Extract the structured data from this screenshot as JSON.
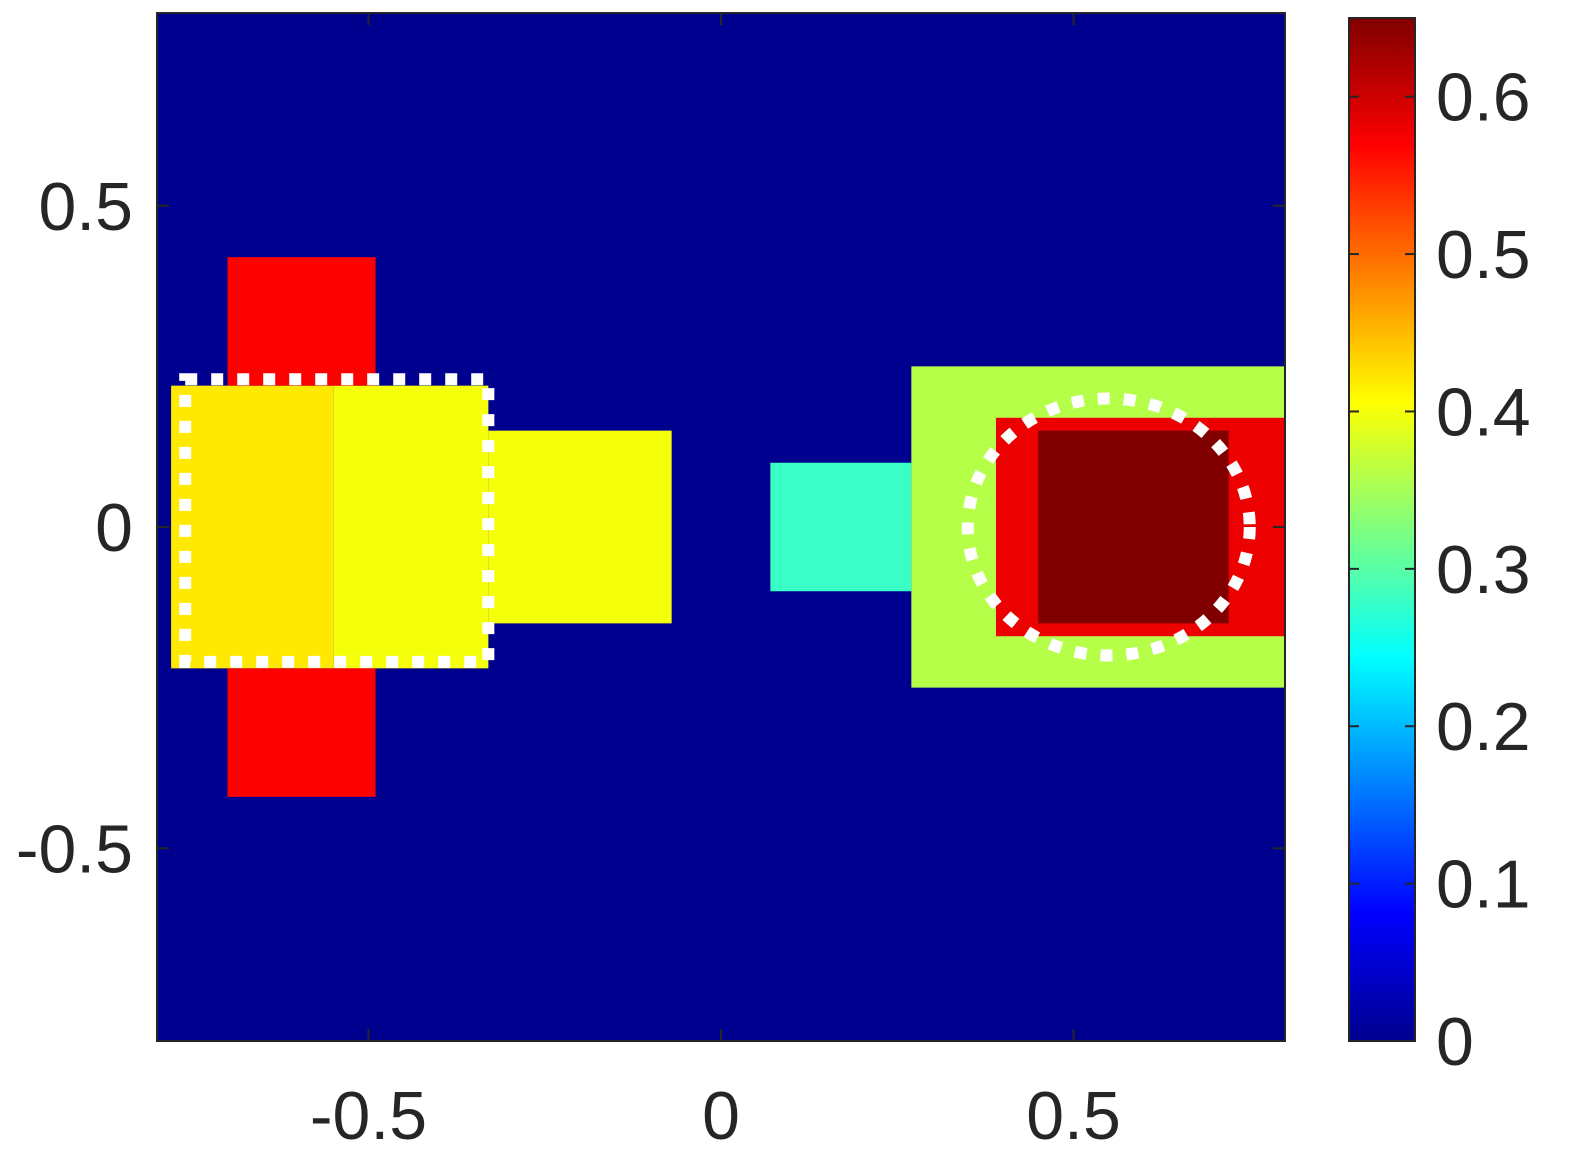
{
  "chart_data": {
    "type": "heatmap",
    "title": "",
    "xlabel": "",
    "ylabel": "",
    "xlim": [
      -0.8,
      0.8
    ],
    "ylim": [
      -0.8,
      0.8
    ],
    "x_ticks": [
      {
        "value": -0.5,
        "label": "-0.5"
      },
      {
        "value": 0,
        "label": "0"
      },
      {
        "value": 0.5,
        "label": "0.5"
      }
    ],
    "y_ticks": [
      {
        "value": 0.5,
        "label": "0.5"
      },
      {
        "value": 0,
        "label": "0"
      },
      {
        "value": -0.5,
        "label": "-0.5"
      }
    ],
    "colormap": "jet",
    "colorbar": {
      "range": [
        0,
        0.65
      ],
      "ticks": [
        {
          "value": 0,
          "label": "0"
        },
        {
          "value": 0.1,
          "label": "0.1"
        },
        {
          "value": 0.2,
          "label": "0.2"
        },
        {
          "value": 0.3,
          "label": "0.3"
        },
        {
          "value": 0.4,
          "label": "0.4"
        },
        {
          "value": 0.5,
          "label": "0.5"
        },
        {
          "value": 0.6,
          "label": "0.6"
        }
      ]
    },
    "grid": false,
    "legend": "none",
    "regions": [
      {
        "shape": "rect",
        "x": [
          -0.78,
          -0.55
        ],
        "y": [
          0.0,
          0.22
        ],
        "value": 0.42
      },
      {
        "shape": "rect",
        "x": [
          -0.78,
          -0.55
        ],
        "y": [
          -0.22,
          0.0
        ],
        "value": 0.42
      },
      {
        "shape": "rect",
        "x": [
          -0.55,
          -0.33
        ],
        "y": [
          -0.22,
          0.22
        ],
        "value": 0.4
      },
      {
        "shape": "rect",
        "x": [
          -0.33,
          -0.07
        ],
        "y": [
          -0.15,
          0.15
        ],
        "value": 0.4
      },
      {
        "shape": "rect",
        "x": [
          -0.7,
          -0.49
        ],
        "y": [
          0.22,
          0.42
        ],
        "value": 0.57
      },
      {
        "shape": "rect",
        "x": [
          -0.7,
          -0.49
        ],
        "y": [
          -0.42,
          -0.22
        ],
        "value": 0.57
      },
      {
        "shape": "rect",
        "x": [
          0.07,
          0.27
        ],
        "y": [
          -0.1,
          0.1
        ],
        "value": 0.28
      },
      {
        "shape": "rect",
        "x": [
          0.27,
          0.8
        ],
        "y": [
          -0.25,
          0.25
        ],
        "value": 0.36
      },
      {
        "shape": "rect",
        "x": [
          0.39,
          0.8
        ],
        "y": [
          -0.17,
          0.17
        ],
        "value": 0.58
      },
      {
        "shape": "rect",
        "x": [
          0.45,
          0.72
        ],
        "y": [
          -0.15,
          0.15
        ],
        "value": 0.65
      }
    ],
    "overlays": [
      {
        "shape": "rect",
        "style": "white dotted",
        "x": [
          -0.76,
          -0.33
        ],
        "y": [
          -0.21,
          0.23
        ]
      },
      {
        "shape": "circle",
        "style": "white dotted",
        "center": [
          0.55,
          0.0
        ],
        "radius": 0.2
      }
    ]
  }
}
